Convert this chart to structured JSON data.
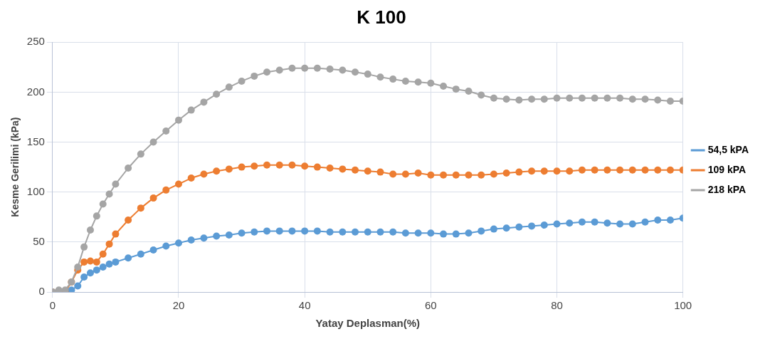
{
  "chart_data": {
    "type": "line",
    "title": "K 100",
    "xlabel": "Yatay Deplasman(%)",
    "ylabel": "Kesme Gerilimi (kPa)",
    "x": [
      0,
      1,
      2,
      3,
      4,
      5,
      6,
      7,
      8,
      9,
      10,
      12,
      14,
      16,
      18,
      20,
      22,
      24,
      26,
      28,
      30,
      32,
      34,
      36,
      38,
      40,
      42,
      44,
      46,
      48,
      50,
      52,
      54,
      56,
      58,
      60,
      62,
      64,
      66,
      68,
      70,
      72,
      74,
      76,
      78,
      80,
      82,
      84,
      86,
      88,
      90,
      92,
      94,
      96,
      98,
      100
    ],
    "series": [
      {
        "name": "54,5 kPA",
        "color": "#5b9bd5",
        "values": [
          0,
          0,
          0,
          2,
          6,
          15,
          19,
          22,
          25,
          28,
          30,
          34,
          38,
          42,
          46,
          49,
          52,
          54,
          56,
          57,
          59,
          60,
          61,
          61,
          61,
          61,
          61,
          60,
          60,
          60,
          60,
          60,
          60,
          59,
          59,
          59,
          58,
          58,
          59,
          61,
          63,
          64,
          65,
          66,
          67,
          68,
          69,
          70,
          70,
          69,
          68,
          68,
          70,
          72,
          72,
          74
        ]
      },
      {
        "name": "109 kPA",
        "color": "#ed7d31",
        "values": [
          0,
          0,
          0,
          10,
          22,
          30,
          31,
          30,
          38,
          48,
          58,
          72,
          84,
          94,
          102,
          108,
          114,
          118,
          121,
          123,
          125,
          126,
          127,
          127,
          127,
          126,
          125,
          124,
          123,
          122,
          121,
          120,
          118,
          118,
          119,
          117,
          117,
          117,
          117,
          117,
          118,
          119,
          120,
          121,
          121,
          121,
          121,
          122,
          122,
          122,
          122,
          122,
          122,
          122,
          122,
          122
        ]
      },
      {
        "name": "218 kPA",
        "color": "#a5a5a5",
        "values": [
          0,
          2,
          2,
          10,
          25,
          45,
          62,
          76,
          88,
          98,
          108,
          124,
          138,
          150,
          161,
          172,
          182,
          190,
          198,
          205,
          211,
          216,
          220,
          222,
          224,
          224,
          224,
          223,
          222,
          220,
          218,
          215,
          213,
          211,
          210,
          209,
          206,
          203,
          201,
          197,
          194,
          193,
          192,
          193,
          193,
          194,
          194,
          194,
          194,
          194,
          194,
          193,
          193,
          192,
          191,
          191
        ]
      }
    ],
    "xlim": [
      0,
      100
    ],
    "xticks": [
      0,
      20,
      40,
      60,
      80,
      100
    ],
    "ylim": [
      0,
      250
    ],
    "yticks": [
      0,
      50,
      100,
      150,
      200,
      250
    ],
    "grid": true,
    "legend": "right",
    "marker": "circle",
    "line_style": "solid"
  }
}
